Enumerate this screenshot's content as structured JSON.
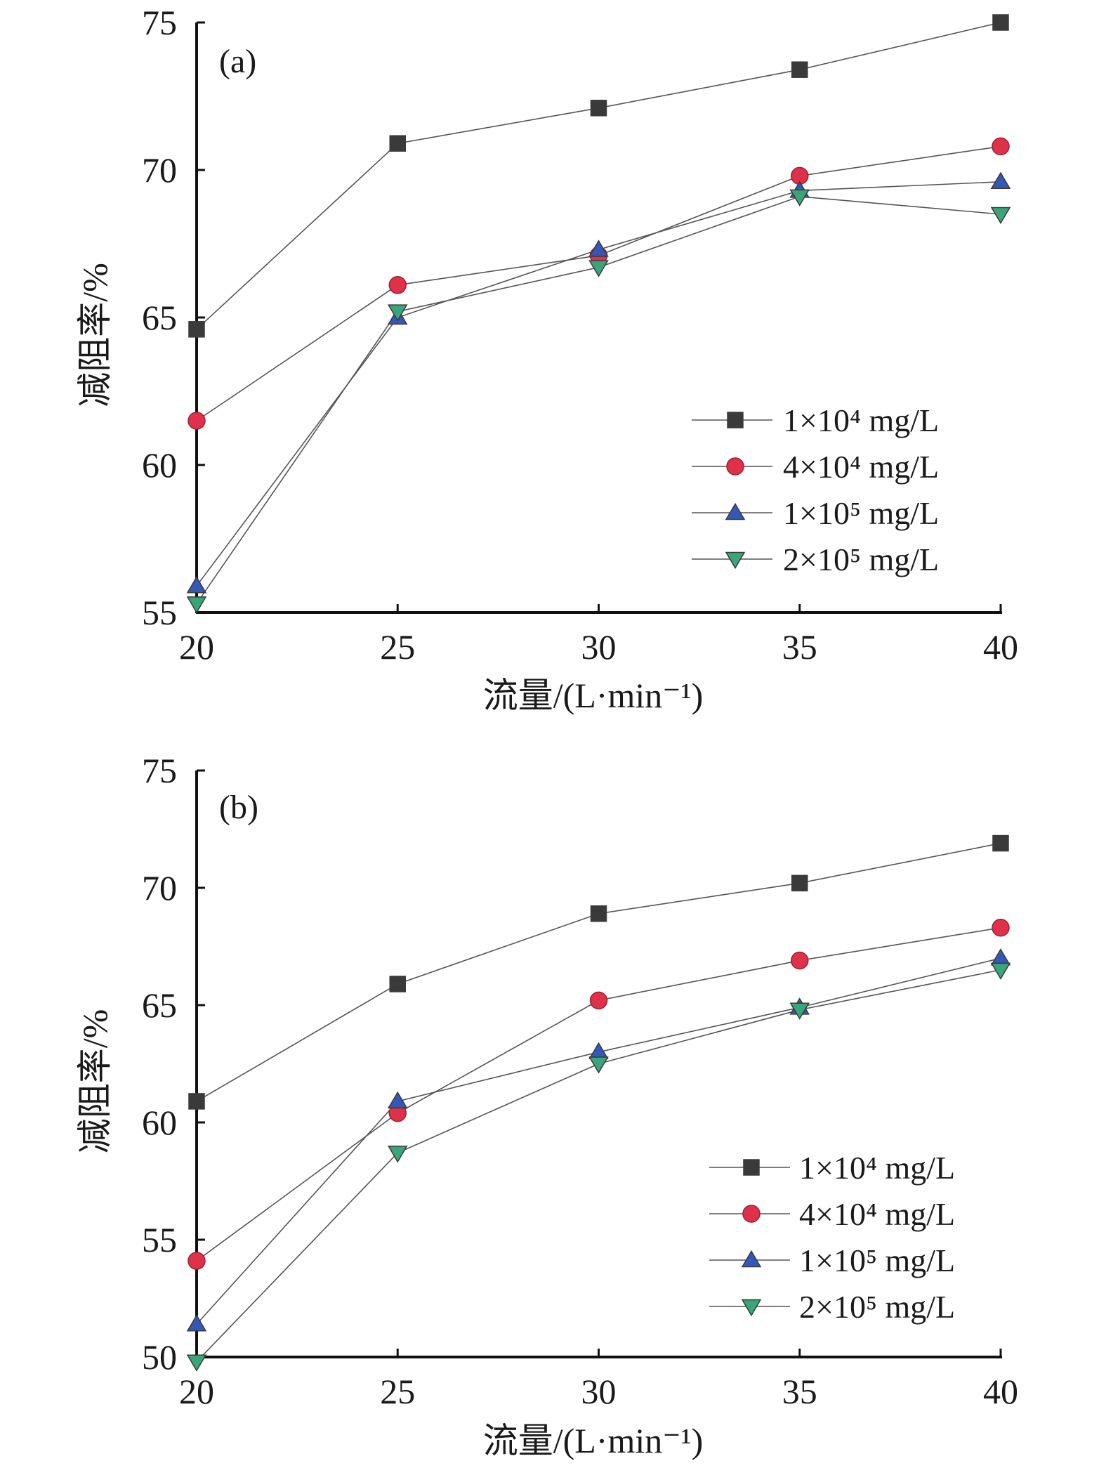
{
  "chart_data": [
    {
      "type": "line",
      "panel_label": "(a)",
      "xlabel": "流量/(L·min⁻¹)",
      "ylabel": "减阻率/%",
      "x": [
        20,
        25,
        30,
        35,
        40
      ],
      "xlim": [
        20,
        40
      ],
      "ylim": [
        55,
        75
      ],
      "xticks": [
        "20",
        "25",
        "30",
        "35",
        "40"
      ],
      "yticks": [
        "55",
        "60",
        "65",
        "70",
        "75"
      ],
      "grid": false,
      "legend_position": "lower-right",
      "series": [
        {
          "name": "1×10⁴ mg/L",
          "marker": "square",
          "color": "#3a3a3a",
          "values": [
            64.6,
            70.9,
            72.1,
            73.4,
            75.0
          ]
        },
        {
          "name": "4×10⁴ mg/L",
          "marker": "circle",
          "color": "#e0314a",
          "values": [
            61.5,
            66.1,
            67.1,
            69.8,
            70.8
          ]
        },
        {
          "name": "1×10⁵ mg/L",
          "marker": "triangle-up",
          "color": "#3557b8",
          "values": [
            55.9,
            65.0,
            67.3,
            69.3,
            69.6
          ]
        },
        {
          "name": "2×10⁵ mg/L",
          "marker": "triangle-down",
          "color": "#3aa57a",
          "values": [
            55.3,
            65.2,
            66.7,
            69.1,
            68.5
          ]
        }
      ]
    },
    {
      "type": "line",
      "panel_label": "(b)",
      "xlabel": "流量/(L·min⁻¹)",
      "ylabel": "减阻率/%",
      "x": [
        20,
        25,
        30,
        35,
        40
      ],
      "xlim": [
        20,
        40
      ],
      "ylim": [
        50,
        75
      ],
      "xticks": [
        "20",
        "25",
        "30",
        "35",
        "40"
      ],
      "yticks": [
        "50",
        "55",
        "60",
        "65",
        "70",
        "75"
      ],
      "grid": false,
      "legend_position": "lower-right",
      "series": [
        {
          "name": "1×10⁴ mg/L",
          "marker": "square",
          "color": "#3a3a3a",
          "values": [
            60.9,
            65.9,
            68.9,
            70.2,
            71.9
          ]
        },
        {
          "name": "4×10⁴ mg/L",
          "marker": "circle",
          "color": "#e0314a",
          "values": [
            54.1,
            60.4,
            65.2,
            66.9,
            68.3
          ]
        },
        {
          "name": "1×10⁵ mg/L",
          "marker": "triangle-up",
          "color": "#3557b8",
          "values": [
            51.4,
            60.9,
            63.0,
            64.9,
            67.0
          ]
        },
        {
          "name": "2×10⁵ mg/L",
          "marker": "triangle-down",
          "color": "#3aa57a",
          "values": [
            49.8,
            58.7,
            62.5,
            64.8,
            66.5
          ]
        }
      ]
    }
  ]
}
